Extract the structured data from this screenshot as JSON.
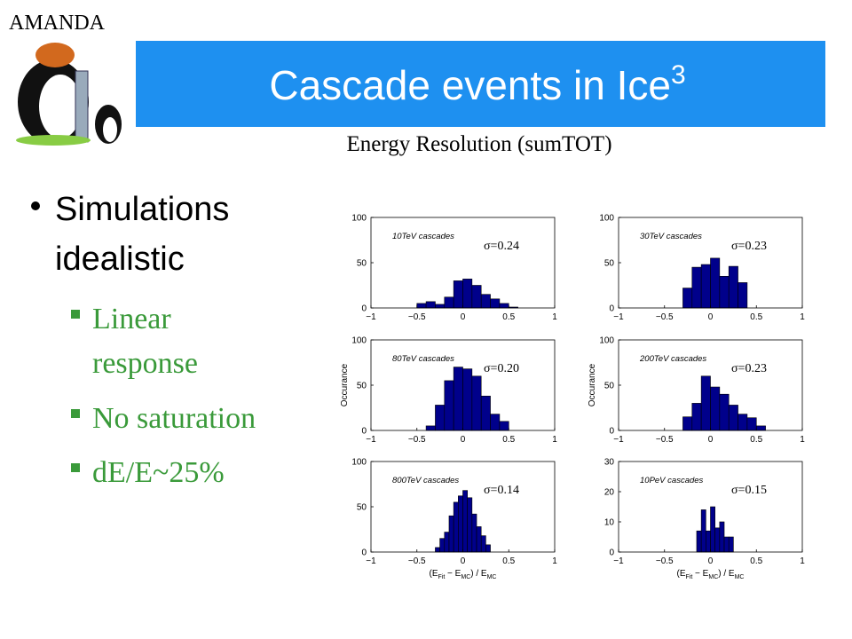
{
  "logo_text": "AMANDA",
  "title": {
    "text": "Cascade events in Ice",
    "superscript": "3"
  },
  "subtitle": "Energy Resolution (sumTOT)",
  "bullet": [
    "Simulations",
    "idealistic"
  ],
  "sub_bullets": [
    [
      "Linear",
      "response"
    ],
    [
      "No saturation"
    ],
    [
      "dE/E~25%"
    ]
  ],
  "chart_data": [
    {
      "type": "histogram",
      "annotation": "10TeV cascades",
      "sigma": "σ=0.24",
      "color": "#00008b",
      "bins": [
        -0.5,
        -0.4,
        -0.3,
        -0.2,
        -0.1,
        0,
        0.1,
        0.2,
        0.3,
        0.4,
        0.5,
        0.6
      ],
      "counts": [
        5,
        7,
        4,
        12,
        30,
        32,
        25,
        15,
        10,
        5,
        1
      ],
      "xlim": [
        -1,
        1
      ],
      "xticks": [
        {
          "value": -1,
          "label": "−1"
        },
        {
          "value": -0.5,
          "label": "−0.5"
        },
        0,
        0.5,
        1
      ],
      "ylim": [
        0,
        100
      ],
      "yticks": [
        0,
        50,
        100
      ]
    },
    {
      "type": "histogram",
      "annotation": "30TeV cascades",
      "sigma": "σ=0.23",
      "color": "#00008b",
      "bins": [
        -0.3,
        -0.2,
        -0.1,
        0,
        0.1,
        0.2,
        0.3,
        0.4
      ],
      "counts": [
        22,
        45,
        48,
        55,
        35,
        46,
        28
      ],
      "xlim": [
        -1,
        1
      ],
      "xticks": [
        {
          "value": -1,
          "label": "−1"
        },
        {
          "value": -0.5,
          "label": "−0.5"
        },
        0,
        0.5,
        1
      ],
      "ylim": [
        0,
        100
      ],
      "yticks": [
        0,
        50,
        100
      ]
    },
    {
      "type": "histogram",
      "annotation": "80TeV cascades",
      "sigma": "σ=0.20",
      "color": "#00008b",
      "ylabel": "Occurance",
      "bins": [
        -0.4,
        -0.3,
        -0.2,
        -0.1,
        0,
        0.1,
        0.2,
        0.3,
        0.4,
        0.5
      ],
      "counts": [
        5,
        28,
        55,
        70,
        68,
        60,
        38,
        18,
        10
      ],
      "xlim": [
        -1,
        1
      ],
      "xticks": [
        {
          "value": -1,
          "label": "−1"
        },
        {
          "value": -0.5,
          "label": "−0.5"
        },
        0,
        0.5,
        1
      ],
      "ylim": [
        0,
        100
      ],
      "yticks": [
        0,
        50,
        100
      ]
    },
    {
      "type": "histogram",
      "annotation": "200TeV cascades",
      "sigma": "σ=0.23",
      "color": "#00008b",
      "ylabel": "Occurance",
      "bins": [
        -0.3,
        -0.2,
        -0.1,
        0,
        0.1,
        0.2,
        0.3,
        0.4,
        0.5,
        0.6
      ],
      "counts": [
        15,
        30,
        60,
        48,
        40,
        28,
        18,
        14,
        5
      ],
      "xlim": [
        -1,
        1
      ],
      "xticks": [
        {
          "value": -1,
          "label": "−1"
        },
        {
          "value": -0.5,
          "label": "−0.5"
        },
        0,
        0.5,
        1
      ],
      "ylim": [
        0,
        100
      ],
      "yticks": [
        0,
        50,
        100
      ]
    },
    {
      "type": "histogram",
      "annotation": "800TeV cascades",
      "sigma": "σ=0.14",
      "color": "#00008b",
      "xlabel": [
        "(E",
        "Fit",
        " − E",
        "MC",
        ") / E",
        "MC"
      ],
      "bins": [
        -0.3,
        -0.25,
        -0.2,
        -0.15,
        -0.1,
        -0.05,
        0,
        0.05,
        0.1,
        0.15,
        0.2,
        0.25,
        0.3
      ],
      "counts": [
        5,
        15,
        22,
        40,
        55,
        62,
        68,
        60,
        42,
        28,
        18,
        8
      ],
      "xlim": [
        -1,
        1
      ],
      "xticks": [
        {
          "value": -1,
          "label": "−1"
        },
        {
          "value": -0.5,
          "label": "−0.5"
        },
        0,
        0.5,
        1
      ],
      "ylim": [
        0,
        100
      ],
      "yticks": [
        0,
        50,
        100
      ]
    },
    {
      "type": "histogram",
      "annotation": "10PeV cascades",
      "sigma": "σ=0.15",
      "color": "#00008b",
      "xlabel": [
        "(E",
        "Fit",
        " − E",
        "MC",
        ") / E",
        "MC"
      ],
      "bins": [
        -0.15,
        -0.1,
        -0.05,
        0,
        0.05,
        0.1,
        0.15,
        0.2,
        0.25
      ],
      "counts": [
        7,
        14,
        7,
        15,
        8,
        10,
        5,
        5
      ],
      "xlim": [
        -1,
        1
      ],
      "xticks": [
        {
          "value": -1,
          "label": "−1"
        },
        {
          "value": -0.5,
          "label": "−0.5"
        },
        0,
        0.5,
        1
      ],
      "ylim": [
        0,
        30
      ],
      "yticks": [
        0,
        10,
        20,
        30
      ]
    }
  ]
}
